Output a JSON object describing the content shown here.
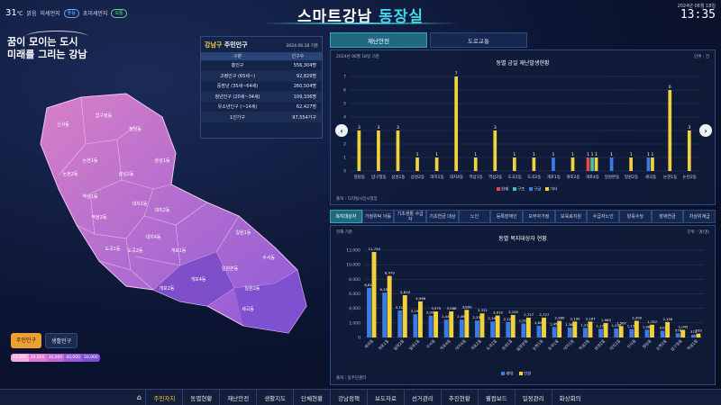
{
  "header": {
    "temperature": "31",
    "temp_unit": "℃",
    "weather": "맑음",
    "fine_dust_label": "미세먼지",
    "fine_dust_status": "좋음",
    "ultrafine_dust_label": "초미세먼지",
    "ultrafine_dust_status": "보통",
    "title_part1": "스마트강남",
    "title_part2": "동장실",
    "date": "2024년 06월 18일",
    "time": "13:35"
  },
  "slogan": {
    "line1": "꿈이 모이는 도시",
    "line2": "미래를 그리는 강남"
  },
  "population": {
    "title_accent": "강남구",
    "title_rest": " 주민인구",
    "as_of": "2024.06.18 기준",
    "col_category": "구분",
    "col_count": "인구수",
    "rows": [
      {
        "label": "총인구",
        "value": "556,304명"
      },
      {
        "label": "고령인구 (65세~)",
        "value": "92,829명"
      },
      {
        "label": "중장년 (35세~64세)",
        "value": "260,504명"
      },
      {
        "label": "청년인구 (20세~34세)",
        "value": "109,336명"
      },
      {
        "label": "유소년인구 (~14세)",
        "value": "62,427명"
      },
      {
        "label": "1인가구",
        "value": "97,554가구"
      }
    ]
  },
  "map": {
    "districts": [
      "압구정동",
      "신사동",
      "청담동",
      "논현1동",
      "논현2동",
      "삼성1동",
      "삼성2동",
      "역삼1동",
      "역삼2동",
      "대치1동",
      "대치2동",
      "대치4동",
      "도곡1동",
      "도곡2동",
      "개포1동",
      "개포2동",
      "개포4동",
      "세곡동",
      "수서동",
      "일원본동",
      "일원1동",
      "일원2동"
    ]
  },
  "population_toggle": {
    "active": "주민인구",
    "inactive": "생활인구"
  },
  "legend": [
    "10,000",
    "20,000",
    "30,000",
    "40,000",
    "50,000"
  ],
  "top_tabs": {
    "active": "재난안전",
    "inactive": "도로교통"
  },
  "disaster_chart": {
    "as_of": "2024년 06월 18일 기준",
    "unit": "단위 : 건",
    "source": "출처 : 디지털시민시청앙",
    "chart_data": {
      "type": "bar",
      "title": "동별 금일 재난발생현황",
      "ylim": [
        0,
        7
      ],
      "categories": [
        "청담동",
        "압구정동",
        "삼성1동",
        "삼성2동",
        "대치1동",
        "대치4동",
        "역삼1동",
        "역삼2동",
        "도곡1동",
        "도곡2동",
        "개포1동",
        "개포2동",
        "개포4동",
        "일원본동",
        "일원2동",
        "세곡동",
        "논현1동",
        "논현2동"
      ],
      "series": [
        {
          "name": "화재",
          "color": "#e8474c",
          "values": [
            0,
            0,
            0,
            0,
            0,
            0,
            0,
            0,
            0,
            0,
            0,
            0,
            1,
            0,
            0,
            0,
            0,
            0
          ]
        },
        {
          "name": "구조",
          "color": "#3fc0b0",
          "values": [
            0,
            0,
            0,
            0,
            0,
            0,
            0,
            0,
            0,
            0,
            0,
            0,
            1,
            0,
            0,
            0,
            0,
            0
          ]
        },
        {
          "name": "구급",
          "color": "#3b7be8",
          "values": [
            0,
            0,
            0,
            0,
            0,
            0,
            0,
            0,
            0,
            0,
            1,
            0,
            0,
            1,
            0,
            1,
            0,
            0
          ]
        },
        {
          "name": "기타",
          "color": "#f2d23a",
          "values": [
            3,
            3,
            3,
            1,
            1,
            7,
            1,
            3,
            1,
            1,
            0,
            1,
            1,
            0,
            1,
            1,
            6,
            3
          ]
        }
      ],
      "legend": [
        "화재",
        "구조",
        "구급",
        "기타"
      ]
    }
  },
  "welfare_tabs": [
    "복지대상자",
    "가정위탁 아동",
    "기초생활 수급자",
    "기초연금 대상",
    "노인",
    "등록장애인",
    "모부자가정",
    "보육료지원",
    "수급자노인",
    "양육수당",
    "장애연금",
    "차상위계급"
  ],
  "welfare_chart": {
    "as_of": "현재 기준",
    "unit": "단위 : 명(명)",
    "source": "출처 : 동주민센터",
    "chart_data": {
      "type": "bar",
      "title": "동별 복지대상자 현황",
      "ylim": [
        0,
        12000
      ],
      "yticks": [
        "0",
        "2,000",
        "4,000",
        "6,000",
        "8,000",
        "10,000",
        "12,000"
      ],
      "categories": [
        "세곡동",
        "개포1동",
        "일원2동",
        "일원1동",
        "수서동",
        "개포4동",
        "대치4동",
        "개포2동",
        "도곡2동",
        "삼성1동",
        "일원본동",
        "논현1동",
        "도곡1동",
        "대치1동",
        "역삼2동",
        "삼성2동",
        "대치2동",
        "신사동",
        "청담동",
        "논현2동",
        "압구정동",
        "역삼1동"
      ],
      "series": [
        {
          "name": "세대",
          "color": "#3b7be8",
          "values": [
            6810,
            6158,
            3714,
            3190,
            3005,
            2444,
            2462,
            2330,
            2199,
            2127,
            1913,
            1625,
            1451,
            1362,
            1315,
            1179,
            1240,
            1155,
            1080,
            933,
            578,
            372
          ]
        },
        {
          "name": "인원",
          "color": "#f2d23a",
          "values": [
            11754,
            8470,
            5810,
            4968,
            3575,
            3588,
            3800,
            3312,
            3019,
            3100,
            2727,
            2727,
            2280,
            2190,
            2187,
            1983,
            1567,
            2300,
            1757,
            2126,
            1045,
            533
          ]
        }
      ],
      "labels_series1": [
        "6,810",
        "6,158",
        "3,714",
        "3,190",
        "3,005",
        "2,444",
        "2,462",
        "2,330",
        "2,199",
        "2,127",
        "1,913",
        "1,625",
        "1,451",
        "1,362",
        "1,315",
        "1,179",
        "1,240",
        "1,155",
        "1,080",
        "933",
        "578",
        "372"
      ],
      "labels_series2": [
        "11,754",
        "8,470",
        "5,810",
        "4,968",
        "3,575",
        "3,588",
        "3,800",
        "3,312",
        "3,019",
        "3,100",
        "2,727",
        "2,727",
        "2,280",
        "2,190",
        "2,187",
        "1,983",
        "1,567",
        "2,300",
        "1,757",
        "2,126",
        "1,045",
        "533"
      ],
      "legend": [
        "세대",
        "인원"
      ]
    }
  },
  "bottom_nav": {
    "active": "주민자치",
    "items": [
      "주민자치",
      "동별현황",
      "재난안전",
      "생활지도",
      "단체현황",
      "강남정책",
      "보도자료",
      "선거관리",
      "추진현황",
      "웰컴보드",
      "일정관리",
      "화상회의"
    ]
  },
  "colors": {
    "accent": "#43d7e8",
    "gold": "#ffd23f",
    "panel": "#101c3a"
  }
}
